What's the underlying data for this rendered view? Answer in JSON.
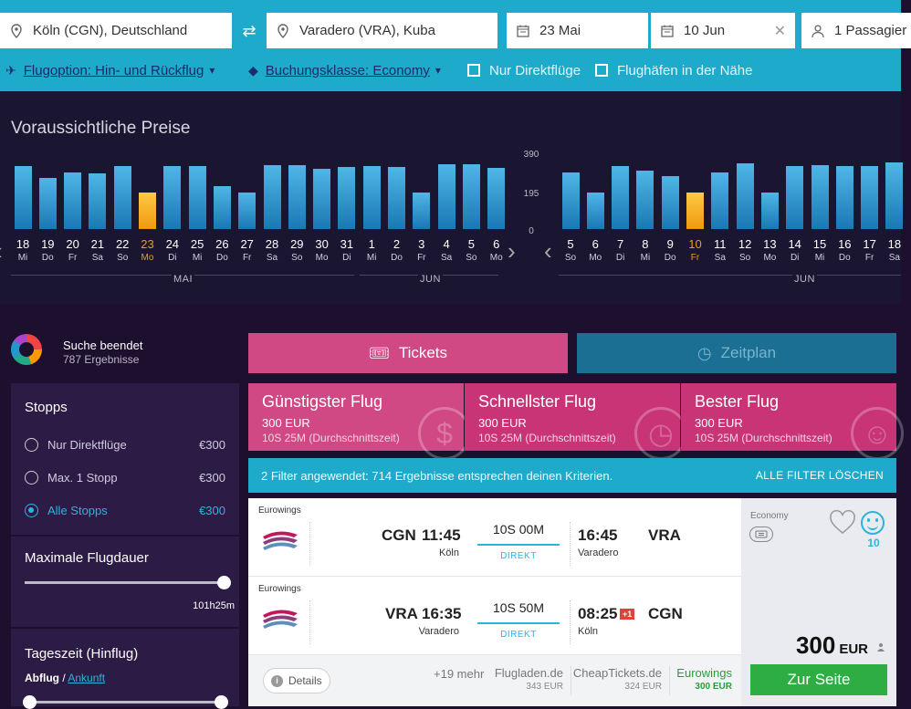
{
  "search": {
    "origin": "Köln (CGN), Deutschland",
    "destination": "Varadero (VRA), Kuba",
    "depart_date": "23 Mai",
    "return_date": "10 Jun",
    "passengers": "1 Passagier"
  },
  "options": {
    "flight_option": "Flugoption: Hin- und Rückflug",
    "booking_class": "Buchungsklasse: Economy",
    "direct_only": "Nur Direktflüge",
    "nearby_airports": "Flughäfen in der Nähe"
  },
  "calendar": {
    "title": "Voraussichtliche Preise",
    "scale": [
      "390",
      "195",
      "0"
    ],
    "outbound": {
      "days": [
        {
          "d": "18",
          "w": "Mi",
          "v": 0.89
        },
        {
          "d": "19",
          "w": "Do",
          "v": 0.72
        },
        {
          "d": "20",
          "w": "Fr",
          "v": 0.8
        },
        {
          "d": "21",
          "w": "Sa",
          "v": 0.78
        },
        {
          "d": "22",
          "w": "So",
          "v": 0.89
        },
        {
          "d": "23",
          "w": "Mo",
          "v": 0.51,
          "sel": true
        },
        {
          "d": "24",
          "w": "Di",
          "v": 0.88
        },
        {
          "d": "25",
          "w": "Mi",
          "v": 0.88
        },
        {
          "d": "26",
          "w": "Do",
          "v": 0.6
        },
        {
          "d": "27",
          "w": "Fr",
          "v": 0.51
        },
        {
          "d": "28",
          "w": "Sa",
          "v": 0.9
        },
        {
          "d": "29",
          "w": "So",
          "v": 0.9
        },
        {
          "d": "30",
          "w": "Mo",
          "v": 0.84
        },
        {
          "d": "31",
          "w": "Di",
          "v": 0.87
        },
        {
          "d": "1",
          "w": "Mi",
          "v": 0.89
        },
        {
          "d": "2",
          "w": "Do",
          "v": 0.87
        },
        {
          "d": "3",
          "w": "Fr",
          "v": 0.51
        },
        {
          "d": "4",
          "w": "Sa",
          "v": 0.91
        },
        {
          "d": "5",
          "w": "So",
          "v": 0.91
        },
        {
          "d": "6",
          "w": "Mo",
          "v": 0.86
        }
      ],
      "months": [
        "MAI",
        "JUN"
      ]
    },
    "return": {
      "days": [
        {
          "d": "5",
          "w": "So",
          "v": 0.8
        },
        {
          "d": "6",
          "w": "Mo",
          "v": 0.51
        },
        {
          "d": "7",
          "w": "Di",
          "v": 0.88
        },
        {
          "d": "8",
          "w": "Mi",
          "v": 0.82
        },
        {
          "d": "9",
          "w": "Do",
          "v": 0.74
        },
        {
          "d": "10",
          "w": "Fr",
          "v": 0.51,
          "sel": true
        },
        {
          "d": "11",
          "w": "Sa",
          "v": 0.8
        },
        {
          "d": "12",
          "w": "So",
          "v": 0.92
        },
        {
          "d": "13",
          "w": "Mo",
          "v": 0.51
        },
        {
          "d": "14",
          "w": "Di",
          "v": 0.88
        },
        {
          "d": "15",
          "w": "Mi",
          "v": 0.9
        },
        {
          "d": "16",
          "w": "Do",
          "v": 0.88
        },
        {
          "d": "17",
          "w": "Fr",
          "v": 0.88
        },
        {
          "d": "18",
          "w": "Sa",
          "v": 0.94
        }
      ],
      "months": [
        "JUN"
      ]
    }
  },
  "status": {
    "title": "Suche beendet",
    "count": "787 Ergebnisse"
  },
  "filters": {
    "stops_title": "Stopps",
    "stops": [
      {
        "label": "Nur Direktflüge",
        "price": "€300",
        "on": false
      },
      {
        "label": "Max. 1 Stopp",
        "price": "€300",
        "on": false
      },
      {
        "label": "Alle Stopps",
        "price": "€300",
        "on": true
      }
    ],
    "duration_title": "Maximale Flugdauer",
    "duration_value": "101h25m",
    "duration_level": 1.0,
    "time_title": "Tageszeit (Hinflug)",
    "time_tab_active": "Abflug",
    "time_tab_sep": "/",
    "time_tab_other": "Ankunft"
  },
  "tabs": {
    "tickets": "Tickets",
    "schedule": "Zeitplan"
  },
  "sort": [
    {
      "title": "Günstigster Flug",
      "price": "300 EUR",
      "sub": "10S 25M (Durchschnittszeit)"
    },
    {
      "title": "Schnellster Flug",
      "price": "300 EUR",
      "sub": "10S 25M (Durchschnittszeit)"
    },
    {
      "title": "Bester Flug",
      "price": "300 EUR",
      "sub": "10S 25M (Durchschnittszeit)"
    }
  ],
  "filter_bar": {
    "text": "2 Filter angewendet: 714 Ergebnisse entsprechen deinen Kriterien.",
    "clear": "ALLE FILTER LÖSCHEN"
  },
  "result": {
    "legs": [
      {
        "airline": "Eurowings",
        "from_code": "CGN",
        "from_time": "11:45",
        "from_city": "Köln",
        "duration": "10S 00M",
        "stops": "DIREKT",
        "to_time": "16:45",
        "to_code": "VRA",
        "to_city": "Varadero",
        "plus": ""
      },
      {
        "airline": "Eurowings",
        "from_code": "VRA",
        "from_time": "16:35",
        "from_city": "Varadero",
        "duration": "10S 50M",
        "stops": "DIREKT",
        "to_time": "08:25",
        "to_code": "CGN",
        "to_city": "Köln",
        "plus": "+1"
      }
    ],
    "details": "Details",
    "more": "+19 mehr",
    "providers": [
      {
        "name": "Flugladen.de",
        "price": "343 EUR"
      },
      {
        "name": "CheapTickets.de",
        "price": "324 EUR"
      },
      {
        "name": "Eurowings",
        "price": "300 EUR"
      }
    ],
    "cabin": "Economy",
    "score": "10",
    "price": "300",
    "currency": "EUR",
    "cta": "Zur Seite"
  }
}
